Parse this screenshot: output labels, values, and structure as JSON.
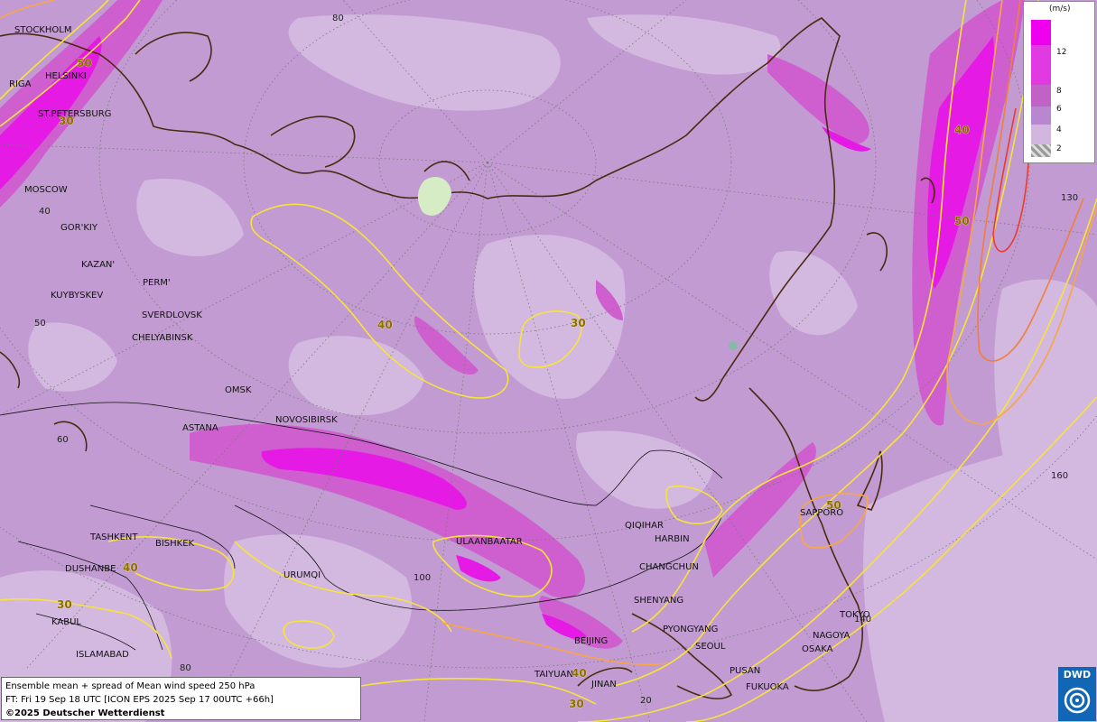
{
  "legend": {
    "unit": "(m/s)",
    "levels": [
      {
        "label": "12",
        "color": "#ee00ee"
      },
      {
        "label": "8",
        "color": "#d14fd1"
      },
      {
        "label": "6",
        "color": "#b987cf"
      },
      {
        "label": "4",
        "color": "#d3b6e0"
      },
      {
        "label": "2",
        "color": "#bdbdbd"
      }
    ]
  },
  "info": {
    "line1": "Ensemble mean + spread of Mean wind speed 250 hPa",
    "line2": "FT: Fri 19 Sep 18 UTC [ICON EPS 2025 Sep 17 00UTC +66h]",
    "copyright": "©2025 Deutscher Wetterdienst"
  },
  "logo": {
    "text": "DWD"
  },
  "cities": {
    "stockholm": "STOCKHOLM",
    "helsinki": "HELSINKI",
    "riga": "RIGA",
    "st_petersburg": "ST.PETERSBURG",
    "moscow": "MOSCOW",
    "gorkiy": "GOR'KIY",
    "kazan": "KAZAN'",
    "kuybyskev": "KUYBYSKEV",
    "perm": "PERM'",
    "sverdlovsk": "SVERDLOVSK",
    "chelyabinsk": "CHELYABINSK",
    "omsk": "OMSK",
    "astana": "ASTANA",
    "novosibirsk": "NOVOSIBIRSK",
    "tashkent": "TASHKENT",
    "bishkek": "BISHKEK",
    "dushanbe": "DUSHANBE",
    "kabul": "KABUL",
    "islamabad": "ISLAMABAD",
    "urumqi": "URUMQI",
    "ulaanbaatar": "ULAANBAATAR",
    "qiqihar": "QIQIHAR",
    "harbin": "HARBIN",
    "changchun": "CHANGCHUN",
    "shenyang": "SHENYANG",
    "pyongyang": "PYONGYANG",
    "seoul": "SEOUL",
    "beijing": "BEIJING",
    "taiyuan": "TAIYUAN",
    "jinan": "JINAN",
    "pusan": "PUSAN",
    "fukuoka": "FUKUOKA",
    "tokyo": "TOKYO",
    "nagoya": "NAGOYA",
    "osaka": "OSAKA",
    "sapporo": "SAPPORO"
  },
  "graticule": {
    "lat_80": "80",
    "lat_40": "40",
    "lat_50": "50",
    "lat_60": "60",
    "lat_80b": "80",
    "lon_100": "100",
    "lon_120": "20",
    "lon_130": "130",
    "lon_140": "140",
    "lon_160": "160"
  },
  "contour_labels": {
    "c50_helsinki": "50",
    "c30_stpete": "30",
    "c40_west_siberia": "40",
    "c30_central": "30",
    "c40_east": "40",
    "c50_east": "50",
    "c50_sapporo": "50",
    "c40_dushanbe": "40",
    "c30_kabul": "30",
    "c40_taiyuan": "40",
    "c30_south": "30"
  }
}
